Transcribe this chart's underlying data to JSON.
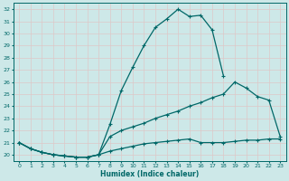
{
  "xlabel": "Humidex (Indice chaleur)",
  "background_color": "#cde8e8",
  "grid_color": "#b0d0d0",
  "line_color": "#006868",
  "xlim": [
    -0.5,
    23.5
  ],
  "ylim": [
    19.5,
    32.5
  ],
  "yticks": [
    20,
    21,
    22,
    23,
    24,
    25,
    26,
    27,
    28,
    29,
    30,
    31,
    32
  ],
  "xticks": [
    0,
    1,
    2,
    3,
    4,
    5,
    6,
    7,
    8,
    9,
    10,
    11,
    12,
    13,
    14,
    15,
    16,
    17,
    18,
    19,
    20,
    21,
    22,
    23
  ],
  "series1_x": [
    0,
    1,
    2,
    3,
    4,
    5,
    6,
    7,
    8,
    9,
    10,
    11,
    12,
    13,
    14,
    15,
    16,
    17,
    18
  ],
  "series1_y": [
    21.0,
    20.5,
    20.2,
    20.0,
    19.9,
    19.8,
    19.8,
    20.0,
    22.5,
    25.3,
    27.2,
    29.0,
    30.5,
    31.2,
    32.0,
    31.4,
    31.5,
    30.3,
    26.5
  ],
  "series2_x": [
    0,
    1,
    2,
    3,
    4,
    5,
    6,
    7,
    8,
    9,
    10,
    11,
    12,
    13,
    14,
    15,
    16,
    17,
    18,
    19,
    20,
    21,
    22,
    23
  ],
  "series2_y": [
    21.0,
    20.5,
    20.2,
    20.0,
    19.9,
    19.8,
    19.8,
    20.0,
    21.5,
    22.0,
    22.3,
    22.6,
    23.0,
    23.3,
    23.6,
    24.0,
    24.3,
    24.7,
    25.0,
    26.0,
    25.5,
    24.8,
    24.5,
    21.5
  ],
  "series3_x": [
    0,
    1,
    2,
    3,
    4,
    5,
    6,
    7,
    8,
    9,
    10,
    11,
    12,
    13,
    14,
    15,
    16,
    17,
    18,
    19,
    20,
    21,
    22,
    23
  ],
  "series3_y": [
    21.0,
    20.5,
    20.2,
    20.0,
    19.9,
    19.8,
    19.8,
    20.0,
    20.3,
    20.5,
    20.7,
    20.9,
    21.0,
    21.1,
    21.2,
    21.3,
    21.0,
    21.0,
    21.0,
    21.1,
    21.2,
    21.2,
    21.3,
    21.3
  ]
}
